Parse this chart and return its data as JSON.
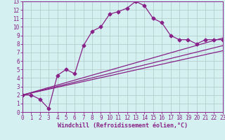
{
  "title": "",
  "xlabel": "Windchill (Refroidissement éolien,°C)",
  "background_color": "#d4f0f0",
  "grid_color": "#b0c8c8",
  "line_color": "#882288",
  "xlim": [
    0,
    23
  ],
  "ylim": [
    0,
    13
  ],
  "xticks": [
    0,
    1,
    2,
    3,
    4,
    5,
    6,
    7,
    8,
    9,
    10,
    11,
    12,
    13,
    14,
    15,
    16,
    17,
    18,
    19,
    20,
    21,
    22,
    23
  ],
  "yticks": [
    0,
    1,
    2,
    3,
    4,
    5,
    6,
    7,
    8,
    9,
    10,
    11,
    12,
    13
  ],
  "line1_x": [
    0,
    1,
    2,
    3,
    4,
    5,
    6,
    7,
    8,
    9,
    10,
    11,
    12,
    13,
    14,
    15,
    16,
    17,
    18,
    19,
    20,
    21,
    22,
    23
  ],
  "line1_y": [
    2.0,
    2.0,
    1.5,
    0.4,
    4.3,
    5.0,
    4.5,
    7.8,
    9.5,
    10.0,
    11.5,
    11.8,
    12.2,
    13.0,
    12.5,
    11.0,
    10.5,
    9.0,
    8.5,
    8.5,
    8.0,
    8.5,
    8.5,
    8.5
  ],
  "line2_x": [
    0,
    23
  ],
  "line2_y": [
    2.0,
    8.7
  ],
  "line3_x": [
    0,
    23
  ],
  "line3_y": [
    2.0,
    7.8
  ],
  "line4_x": [
    0,
    23
  ],
  "line4_y": [
    2.0,
    7.2
  ],
  "marker": "D",
  "markersize": 2.5,
  "linewidth": 0.9,
  "tick_fontsize": 5.5,
  "xlabel_fontsize": 6.0
}
